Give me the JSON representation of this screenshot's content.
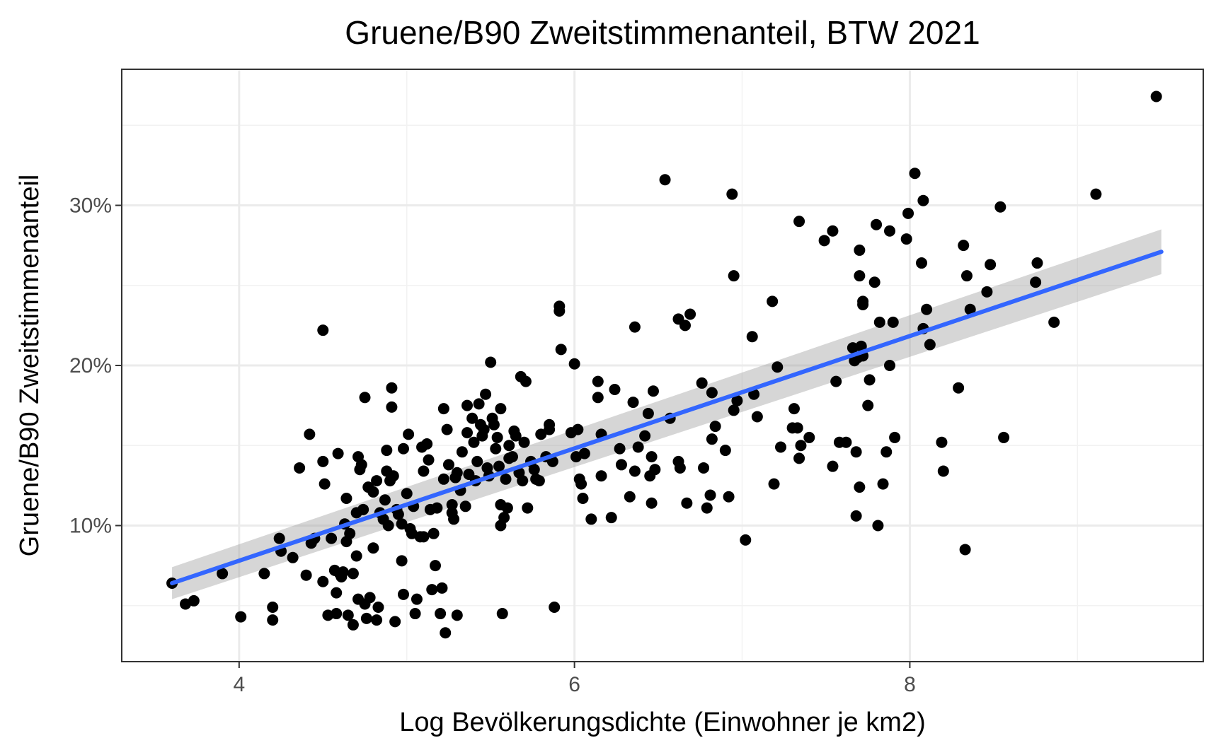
{
  "chart_data": {
    "type": "scatter",
    "title": "Gruene/B90 Zweitstimmenanteil, BTW 2021",
    "xlabel": "Log Bevölkerungsdichte (Einwohner je km2)",
    "ylabel": "Gruene/B90 Zweitstimmenanteil",
    "xlim": [
      3.3,
      9.75
    ],
    "ylim": [
      0.015,
      0.385
    ],
    "x_ticks": [
      {
        "value": 4,
        "label": "4"
      },
      {
        "value": 6,
        "label": "6"
      },
      {
        "value": 8,
        "label": "8"
      }
    ],
    "x_minor_ticks": [
      5,
      7,
      9
    ],
    "y_ticks": [
      {
        "value": 0.1,
        "label": "10%"
      },
      {
        "value": 0.2,
        "label": "20%"
      },
      {
        "value": 0.3,
        "label": "30%"
      }
    ],
    "y_minor_ticks": [
      0.05,
      0.15,
      0.25,
      0.35
    ],
    "grid": true,
    "legend": "none",
    "colors": {
      "points": "#000000",
      "fit_line": "#3366FF",
      "confidence_band": "#999999",
      "grid": "#EBEBEB"
    },
    "fit": {
      "method": "linear",
      "x": [
        3.6,
        9.5
      ],
      "y": [
        0.064,
        0.271
      ],
      "band_lower": [
        0.054,
        0.257
      ],
      "band_upper": [
        0.074,
        0.285
      ]
    },
    "points": [
      [
        3.6,
        0.064
      ],
      [
        3.68,
        0.051
      ],
      [
        3.73,
        0.053
      ],
      [
        3.9,
        0.07
      ],
      [
        4.01,
        0.043
      ],
      [
        4.15,
        0.07
      ],
      [
        4.2,
        0.049
      ],
      [
        4.2,
        0.041
      ],
      [
        4.24,
        0.092
      ],
      [
        4.25,
        0.084
      ],
      [
        4.32,
        0.08
      ],
      [
        4.36,
        0.136
      ],
      [
        4.4,
        0.069
      ],
      [
        4.42,
        0.157
      ],
      [
        4.43,
        0.089
      ],
      [
        4.45,
        0.092
      ],
      [
        4.5,
        0.222
      ],
      [
        4.5,
        0.14
      ],
      [
        4.51,
        0.126
      ],
      [
        4.5,
        0.065
      ],
      [
        4.53,
        0.044
      ],
      [
        4.55,
        0.092
      ],
      [
        4.57,
        0.072
      ],
      [
        4.58,
        0.058
      ],
      [
        4.58,
        0.045
      ],
      [
        4.59,
        0.145
      ],
      [
        4.6,
        0.07
      ],
      [
        4.61,
        0.068
      ],
      [
        4.62,
        0.071
      ],
      [
        4.63,
        0.101
      ],
      [
        4.64,
        0.117
      ],
      [
        4.64,
        0.09
      ],
      [
        4.65,
        0.044
      ],
      [
        4.66,
        0.095
      ],
      [
        4.68,
        0.038
      ],
      [
        4.68,
        0.07
      ],
      [
        4.7,
        0.081
      ],
      [
        4.7,
        0.108
      ],
      [
        4.71,
        0.143
      ],
      [
        4.71,
        0.054
      ],
      [
        4.72,
        0.135
      ],
      [
        4.73,
        0.138
      ],
      [
        4.74,
        0.11
      ],
      [
        4.75,
        0.051
      ],
      [
        4.76,
        0.042
      ],
      [
        4.75,
        0.18
      ],
      [
        4.77,
        0.124
      ],
      [
        4.78,
        0.055
      ],
      [
        4.8,
        0.121
      ],
      [
        4.8,
        0.086
      ],
      [
        4.82,
        0.128
      ],
      [
        4.82,
        0.041
      ],
      [
        4.83,
        0.049
      ],
      [
        4.84,
        0.108
      ],
      [
        4.86,
        0.104
      ],
      [
        4.87,
        0.116
      ],
      [
        4.88,
        0.147
      ],
      [
        4.88,
        0.134
      ],
      [
        4.89,
        0.1
      ],
      [
        4.9,
        0.128
      ],
      [
        4.91,
        0.174
      ],
      [
        4.91,
        0.186
      ],
      [
        4.92,
        0.131
      ],
      [
        4.93,
        0.04
      ],
      [
        4.94,
        0.11
      ],
      [
        4.95,
        0.107
      ],
      [
        4.97,
        0.078
      ],
      [
        4.97,
        0.101
      ],
      [
        4.98,
        0.057
      ],
      [
        4.98,
        0.148
      ],
      [
        5.0,
        0.12
      ],
      [
        5.01,
        0.157
      ],
      [
        5.02,
        0.098
      ],
      [
        5.03,
        0.095
      ],
      [
        5.04,
        0.112
      ],
      [
        5.05,
        0.045
      ],
      [
        5.06,
        0.054
      ],
      [
        5.08,
        0.093
      ],
      [
        5.09,
        0.149
      ],
      [
        5.1,
        0.093
      ],
      [
        5.1,
        0.134
      ],
      [
        5.12,
        0.151
      ],
      [
        5.13,
        0.141
      ],
      [
        5.14,
        0.11
      ],
      [
        5.15,
        0.06
      ],
      [
        5.16,
        0.095
      ],
      [
        5.17,
        0.075
      ],
      [
        5.18,
        0.111
      ],
      [
        5.2,
        0.045
      ],
      [
        5.21,
        0.061
      ],
      [
        5.22,
        0.173
      ],
      [
        5.22,
        0.129
      ],
      [
        5.23,
        0.033
      ],
      [
        5.24,
        0.16
      ],
      [
        5.25,
        0.138
      ],
      [
        5.27,
        0.108
      ],
      [
        5.27,
        0.113
      ],
      [
        5.28,
        0.104
      ],
      [
        5.29,
        0.13
      ],
      [
        5.3,
        0.133
      ],
      [
        5.3,
        0.044
      ],
      [
        5.32,
        0.122
      ],
      [
        5.33,
        0.146
      ],
      [
        5.35,
        0.112
      ],
      [
        5.36,
        0.175
      ],
      [
        5.36,
        0.158
      ],
      [
        5.37,
        0.132
      ],
      [
        5.39,
        0.167
      ],
      [
        5.4,
        0.152
      ],
      [
        5.41,
        0.128
      ],
      [
        5.42,
        0.14
      ],
      [
        5.43,
        0.176
      ],
      [
        5.44,
        0.163
      ],
      [
        5.45,
        0.156
      ],
      [
        5.46,
        0.16
      ],
      [
        5.47,
        0.182
      ],
      [
        5.48,
        0.136
      ],
      [
        5.49,
        0.131
      ],
      [
        5.5,
        0.202
      ],
      [
        5.51,
        0.167
      ],
      [
        5.52,
        0.163
      ],
      [
        5.53,
        0.148
      ],
      [
        5.54,
        0.155
      ],
      [
        5.55,
        0.137
      ],
      [
        5.56,
        0.173
      ],
      [
        5.56,
        0.1
      ],
      [
        5.56,
        0.113
      ],
      [
        5.57,
        0.045
      ],
      [
        5.58,
        0.105
      ],
      [
        5.59,
        0.129
      ],
      [
        5.6,
        0.111
      ],
      [
        5.61,
        0.15
      ],
      [
        5.61,
        0.142
      ],
      [
        5.63,
        0.143
      ],
      [
        5.64,
        0.159
      ],
      [
        5.65,
        0.156
      ],
      [
        5.67,
        0.133
      ],
      [
        5.68,
        0.193
      ],
      [
        5.69,
        0.128
      ],
      [
        5.7,
        0.152
      ],
      [
        5.71,
        0.19
      ],
      [
        5.72,
        0.111
      ],
      [
        5.74,
        0.14
      ],
      [
        5.76,
        0.135
      ],
      [
        5.77,
        0.129
      ],
      [
        5.79,
        0.128
      ],
      [
        5.8,
        0.157
      ],
      [
        5.83,
        0.143
      ],
      [
        5.85,
        0.163
      ],
      [
        5.85,
        0.16
      ],
      [
        5.87,
        0.14
      ],
      [
        5.88,
        0.049
      ],
      [
        5.91,
        0.234
      ],
      [
        5.91,
        0.237
      ],
      [
        5.92,
        0.21
      ],
      [
        5.98,
        0.158
      ],
      [
        6.0,
        0.201
      ],
      [
        6.01,
        0.143
      ],
      [
        6.02,
        0.16
      ],
      [
        6.03,
        0.129
      ],
      [
        6.04,
        0.126
      ],
      [
        6.05,
        0.117
      ],
      [
        6.06,
        0.145
      ],
      [
        6.1,
        0.104
      ],
      [
        6.14,
        0.19
      ],
      [
        6.14,
        0.18
      ],
      [
        6.16,
        0.157
      ],
      [
        6.16,
        0.131
      ],
      [
        6.22,
        0.105
      ],
      [
        6.24,
        0.185
      ],
      [
        6.27,
        0.148
      ],
      [
        6.28,
        0.138
      ],
      [
        6.33,
        0.118
      ],
      [
        6.35,
        0.177
      ],
      [
        6.36,
        0.224
      ],
      [
        6.36,
        0.134
      ],
      [
        6.38,
        0.149
      ],
      [
        6.42,
        0.156
      ],
      [
        6.44,
        0.17
      ],
      [
        6.45,
        0.131
      ],
      [
        6.46,
        0.143
      ],
      [
        6.46,
        0.114
      ],
      [
        6.47,
        0.184
      ],
      [
        6.48,
        0.135
      ],
      [
        6.54,
        0.316
      ],
      [
        6.57,
        0.167
      ],
      [
        6.62,
        0.229
      ],
      [
        6.62,
        0.14
      ],
      [
        6.63,
        0.136
      ],
      [
        6.66,
        0.225
      ],
      [
        6.67,
        0.114
      ],
      [
        6.69,
        0.232
      ],
      [
        6.76,
        0.189
      ],
      [
        6.77,
        0.136
      ],
      [
        6.79,
        0.111
      ],
      [
        6.81,
        0.119
      ],
      [
        6.82,
        0.154
      ],
      [
        6.82,
        0.183
      ],
      [
        6.84,
        0.162
      ],
      [
        6.9,
        0.147
      ],
      [
        6.92,
        0.118
      ],
      [
        6.94,
        0.307
      ],
      [
        6.95,
        0.172
      ],
      [
        6.95,
        0.256
      ],
      [
        6.97,
        0.178
      ],
      [
        7.02,
        0.091
      ],
      [
        7.06,
        0.218
      ],
      [
        7.07,
        0.182
      ],
      [
        7.09,
        0.168
      ],
      [
        7.18,
        0.24
      ],
      [
        7.19,
        0.126
      ],
      [
        7.21,
        0.199
      ],
      [
        7.23,
        0.149
      ],
      [
        7.3,
        0.161
      ],
      [
        7.31,
        0.173
      ],
      [
        7.33,
        0.161
      ],
      [
        7.34,
        0.29
      ],
      [
        7.34,
        0.142
      ],
      [
        7.35,
        0.15
      ],
      [
        7.4,
        0.155
      ],
      [
        7.49,
        0.278
      ],
      [
        7.54,
        0.137
      ],
      [
        7.54,
        0.284
      ],
      [
        7.56,
        0.19
      ],
      [
        7.58,
        0.152
      ],
      [
        7.62,
        0.152
      ],
      [
        7.66,
        0.211
      ],
      [
        7.67,
        0.203
      ],
      [
        7.68,
        0.146
      ],
      [
        7.68,
        0.106
      ],
      [
        7.69,
        0.205
      ],
      [
        7.7,
        0.124
      ],
      [
        7.7,
        0.272
      ],
      [
        7.7,
        0.256
      ],
      [
        7.71,
        0.212
      ],
      [
        7.72,
        0.206
      ],
      [
        7.72,
        0.238
      ],
      [
        7.72,
        0.24
      ],
      [
        7.75,
        0.175
      ],
      [
        7.76,
        0.191
      ],
      [
        7.79,
        0.252
      ],
      [
        7.8,
        0.288
      ],
      [
        7.81,
        0.1
      ],
      [
        7.82,
        0.227
      ],
      [
        7.84,
        0.126
      ],
      [
        7.86,
        0.146
      ],
      [
        7.88,
        0.284
      ],
      [
        7.88,
        0.2
      ],
      [
        7.9,
        0.227
      ],
      [
        7.91,
        0.155
      ],
      [
        7.98,
        0.279
      ],
      [
        7.99,
        0.295
      ],
      [
        8.03,
        0.32
      ],
      [
        8.07,
        0.264
      ],
      [
        8.08,
        0.223
      ],
      [
        8.08,
        0.303
      ],
      [
        8.1,
        0.235
      ],
      [
        8.12,
        0.213
      ],
      [
        8.19,
        0.152
      ],
      [
        8.2,
        0.134
      ],
      [
        8.29,
        0.186
      ],
      [
        8.32,
        0.275
      ],
      [
        8.33,
        0.085
      ],
      [
        8.34,
        0.256
      ],
      [
        8.36,
        0.235
      ],
      [
        8.46,
        0.246
      ],
      [
        8.48,
        0.263
      ],
      [
        8.54,
        0.299
      ],
      [
        8.56,
        0.155
      ],
      [
        8.75,
        0.252
      ],
      [
        8.76,
        0.264
      ],
      [
        8.86,
        0.227
      ],
      [
        9.11,
        0.307
      ],
      [
        9.47,
        0.368
      ]
    ]
  }
}
